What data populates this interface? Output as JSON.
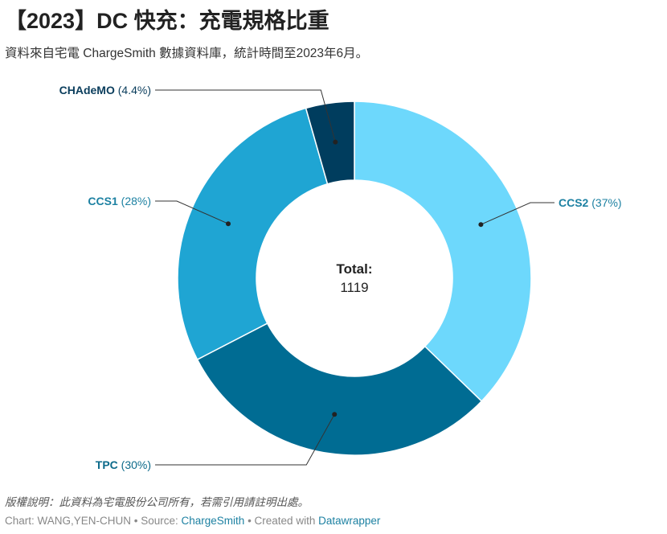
{
  "title": "【2023】DC 快充：充電規格比重",
  "subtitle": "資料來自宅電 ChargeSmith 數據資料庫，統計時間至2023年6月。",
  "center": {
    "label": "Total:",
    "value": "1119"
  },
  "note": "版權說明：此資料為宅電股份公司所有，若需引用請註明出處。",
  "credits": {
    "prefix": "Chart: WANG,YEN-CHUN • Source: ",
    "source": "ChargeSmith",
    "middle": " • Created with ",
    "tool": "Datawrapper"
  },
  "chart_data": {
    "type": "pie",
    "donut": true,
    "total": 1119,
    "slices": [
      {
        "name": "CCS2",
        "value": 37,
        "pct_label": "(37%)",
        "color": "#6dd8fc",
        "label_color": "#1d81a2"
      },
      {
        "name": "TPC",
        "value": 30,
        "pct_label": "(30%)",
        "color": "#006c93",
        "label_color": "#0c6a8a"
      },
      {
        "name": "CCS1",
        "value": 28,
        "pct_label": "(28%)",
        "color": "#1fa5d3",
        "label_color": "#1d81a2"
      },
      {
        "name": "CHAdeMO",
        "value": 4.4,
        "pct_label": "(4.4%)",
        "color": "#003d5e",
        "label_color": "#0a3d5c"
      }
    ]
  }
}
